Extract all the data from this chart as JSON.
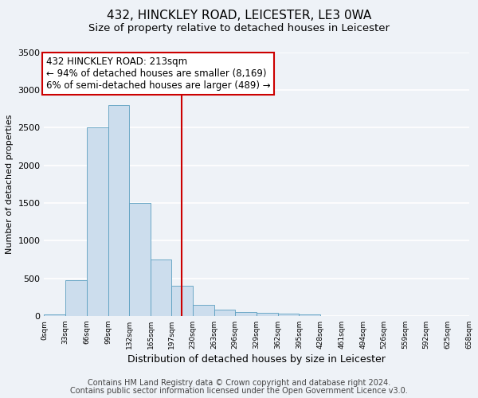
{
  "title": "432, HINCKLEY ROAD, LEICESTER, LE3 0WA",
  "subtitle": "Size of property relative to detached houses in Leicester",
  "xlabel": "Distribution of detached houses by size in Leicester",
  "ylabel": "Number of detached properties",
  "footer_line1": "Contains HM Land Registry data © Crown copyright and database right 2024.",
  "footer_line2": "Contains public sector information licensed under the Open Government Licence v3.0.",
  "bin_edges": [
    0,
    33,
    66,
    99,
    132,
    165,
    197,
    230,
    263,
    296,
    329,
    362,
    395,
    428,
    461,
    494,
    526,
    559,
    592,
    625,
    658
  ],
  "bin_labels": [
    "0sqm",
    "33sqm",
    "66sqm",
    "99sqm",
    "132sqm",
    "165sqm",
    "197sqm",
    "230sqm",
    "263sqm",
    "296sqm",
    "329sqm",
    "362sqm",
    "395sqm",
    "428sqm",
    "461sqm",
    "494sqm",
    "526sqm",
    "559sqm",
    "592sqm",
    "625sqm",
    "658sqm"
  ],
  "bar_heights": [
    20,
    470,
    2500,
    2800,
    1500,
    750,
    400,
    150,
    80,
    55,
    40,
    30,
    20,
    0,
    0,
    0,
    0,
    0,
    0,
    0
  ],
  "bar_color": "#ccdded",
  "bar_edge_color": "#5b9fc0",
  "vline_x": 213,
  "vline_color": "#cc0000",
  "annotation_line1": "432 HINCKLEY ROAD: 213sqm",
  "annotation_line2": "← 94% of detached houses are smaller (8,169)",
  "annotation_line3": "6% of semi-detached houses are larger (489) →",
  "annotation_box_color": "#cc0000",
  "annotation_box_fill": "#ffffff",
  "ylim": [
    0,
    3500
  ],
  "yticks": [
    0,
    500,
    1000,
    1500,
    2000,
    2500,
    3000,
    3500
  ],
  "bg_color": "#eef2f7",
  "grid_color": "#ffffff",
  "title_fontsize": 11,
  "subtitle_fontsize": 9.5,
  "ylabel_fontsize": 8,
  "xlabel_fontsize": 9,
  "annotation_fontsize": 8.5,
  "xtick_fontsize": 6.5,
  "ytick_fontsize": 8,
  "footer_fontsize": 7
}
